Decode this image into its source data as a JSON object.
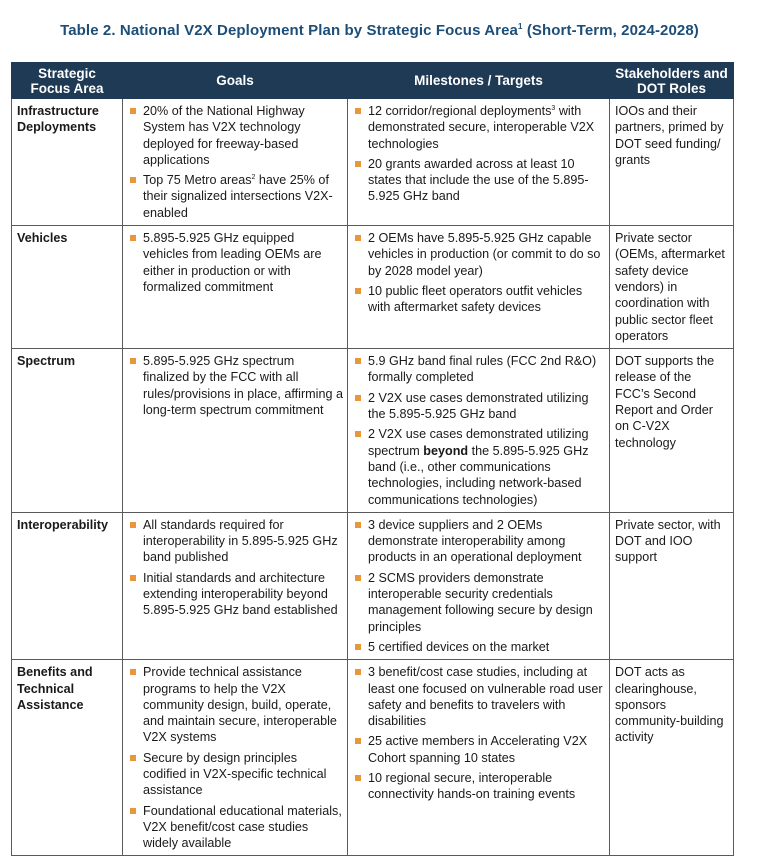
{
  "title": {
    "main": "Table 2. National V2X Deployment Plan by Strategic Focus Area",
    "sup": "1",
    "suffix": " (Short-Term, 2024-2028)"
  },
  "headers": {
    "area": "Strategic Focus Area",
    "goals": "Goals",
    "milestones": "Milestones / Targets",
    "roles": "Stakeholders and DOT Roles"
  },
  "colors": {
    "header_bg": "#1f3a55",
    "title": "#1c4e78",
    "bullet": "#e8973a"
  },
  "rows": [
    {
      "area": "Infrastructure Deployments",
      "goals": [
        "20% of the National Highway System has V2X technology deployed for freeway-based applications",
        "Top 75 Metro areas² have 25% of their signalized intersections V2X-enabled"
      ],
      "milestones": [
        "12 corridor/regional deployments³ with demonstrated secure, interoperable V2X technologies",
        "20 grants awarded across at least 10 states that include the use of the 5.895-5.925 GHz band"
      ],
      "roles": "IOOs and their partners, primed by DOT seed funding/ grants"
    },
    {
      "area": "Vehicles",
      "goals": [
        "5.895-5.925 GHz equipped vehicles from leading OEMs are either in production or with formalized commitment"
      ],
      "milestones": [
        "2 OEMs have 5.895-5.925 GHz capable vehicles in production (or commit to do so by 2028 model year)",
        "10 public fleet operators outfit vehicles with aftermarket safety devices"
      ],
      "roles": "Private sector (OEMs, aftermarket safety device vendors) in coordination with public sector fleet operators"
    },
    {
      "area": "Spectrum",
      "goals": [
        "5.895-5.925 GHz spectrum finalized by the FCC with all rules/provisions in place, affirming a long-term spectrum commitment"
      ],
      "milestones": [
        "5.9 GHz band final rules (FCC 2nd R&O) formally completed",
        "2 V2X use cases demonstrated utilizing the 5.895-5.925 GHz band",
        "2 V2X use cases demonstrated utilizing spectrum beyond the 5.895-5.925 GHz band (i.e., other communications technologies, including network-based communications technologies)"
      ],
      "milestone_bold": {
        "before": "2 V2X use cases demonstrated utilizing spectrum ",
        "bold": "beyond",
        "after": " the 5.895-5.925 GHz band (i.e., other communications technologies, including network-based communications technologies)"
      },
      "roles": "DOT supports the release of the FCC’s Second Report and Order on C-V2X technology"
    },
    {
      "area": "Interoperability",
      "goals": [
        "All standards required for interoperability in 5.895-5.925 GHz band published",
        "Initial standards and architecture extending interoperability beyond 5.895-5.925 GHz band established"
      ],
      "milestones": [
        "3 device suppliers and 2 OEMs demonstrate interoperability among products in an operational deployment",
        "2 SCMS providers demonstrate interoperable security credentials management following secure by design principles",
        "5 certified devices on the market"
      ],
      "roles": "Private sector, with DOT and IOO support"
    },
    {
      "area": "Benefits and Technical Assistance",
      "goals": [
        "Provide technical assistance programs to help the V2X community design, build, operate, and maintain secure, interoperable V2X systems",
        "Secure by design principles codified in V2X-specific technical assistance",
        "Foundational educational materials, V2X benefit/cost case studies widely available"
      ],
      "milestones": [
        "3 benefit/cost case studies, including at least one focused on vulnerable road user safety and benefits to travelers with disabilities",
        "25 active members in Accelerating V2X Cohort spanning 10 states",
        "10 regional secure, interoperable connectivity hands-on training events"
      ],
      "roles": "DOT acts as clearinghouse, sponsors community-building activity"
    }
  ]
}
